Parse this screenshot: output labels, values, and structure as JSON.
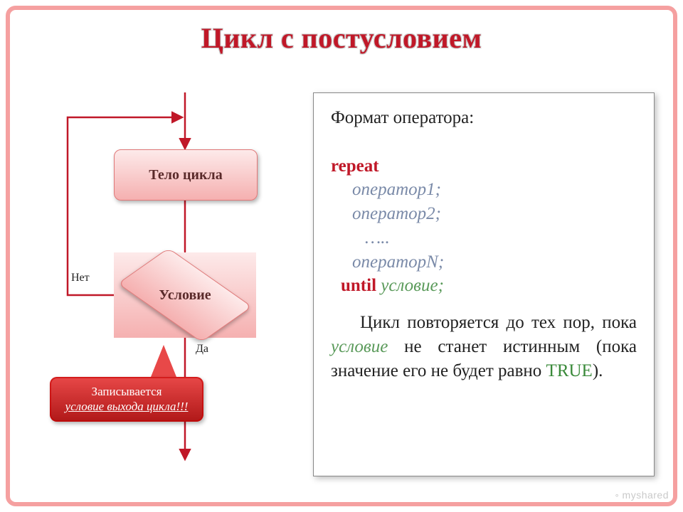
{
  "colors": {
    "frame_border": "#f5a0a0",
    "title_fill": "#c01828",
    "title_stroke": "#c8c8c8",
    "accent_red": "#c01828",
    "block_bg_top": "#fdeaea",
    "block_bg_bot": "#f5b0b0",
    "block_border": "#e07878",
    "callout_bg_top": "#e84848",
    "callout_bg_bot": "#b01818",
    "flow_line": "#c01828",
    "panel_text": "#222222",
    "op_italic": "#7a8aa8",
    "cond_green": "#5a9a5a",
    "true_green": "#3a8a3a"
  },
  "title": "Цикл с постусловием",
  "flowchart": {
    "type": "flowchart",
    "body_label": "Тело цикла",
    "cond_label": "Условие",
    "no_label": "Нет",
    "yes_label": "Да",
    "callout_line1": "Записывается",
    "callout_line2": "условие выхода цикла!!!",
    "line_width": 2.5,
    "arrow_size": 10
  },
  "panel": {
    "heading": "Формат оператора:",
    "kw_repeat": "repeat",
    "op1": "оператор1;",
    "op2": "оператор2;",
    "dots": "…..",
    "opN": "операторN;",
    "kw_until": "until",
    "until_cond": "условие;",
    "para_pre": "Цикл повторяется до тех пор, пока ",
    "para_cond": "условие",
    "para_mid": " не станет истинным (пока значение его не будет равно ",
    "para_true": "TRUE",
    "para_post": ").",
    "fontsize": 25
  },
  "watermark": "myshared"
}
